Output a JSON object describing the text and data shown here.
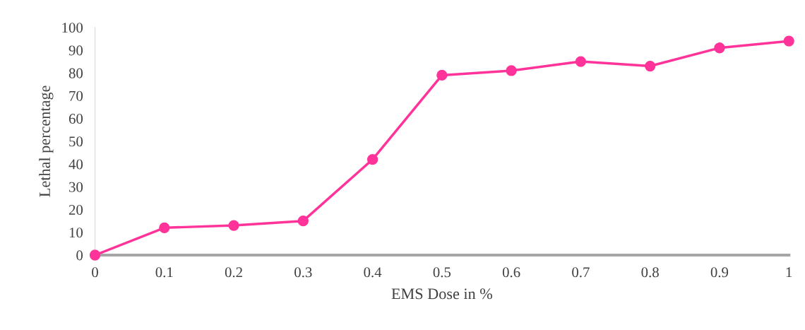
{
  "chart_data": {
    "type": "line",
    "xlabel": "EMS Dose in %",
    "ylabel": "Lethal percentage",
    "x": [
      0,
      0.1,
      0.2,
      0.3,
      0.4,
      0.5,
      0.6,
      0.7,
      0.8,
      0.9,
      1
    ],
    "series": [
      {
        "color": "#ff3399",
        "values": [
          0,
          12,
          13,
          15,
          42,
          79,
          81,
          85,
          83,
          91,
          94
        ]
      }
    ],
    "xlim": [
      0,
      1
    ],
    "xticks": [
      0,
      0.1,
      0.2,
      0.3,
      0.4,
      0.5,
      0.6,
      0.7,
      0.8,
      0.9,
      1
    ],
    "ylim": [
      0,
      100
    ],
    "yticks": [
      0,
      10,
      20,
      30,
      40,
      50,
      60,
      70,
      80,
      90,
      100
    ],
    "grid": false,
    "marker": "circle",
    "line_style": "solid"
  }
}
